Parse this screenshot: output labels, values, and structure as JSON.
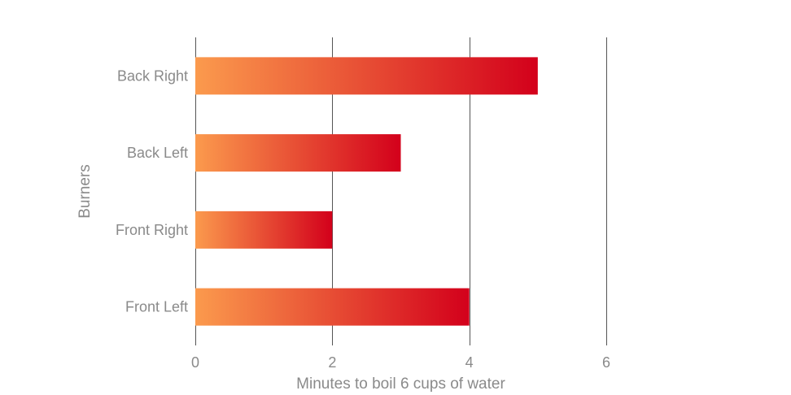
{
  "chart_data": {
    "type": "bar",
    "orientation": "horizontal",
    "categories": [
      "Back Right",
      "Back Left",
      "Front Right",
      "Front Left"
    ],
    "values": [
      5,
      3,
      2,
      4
    ],
    "xlabel": "Minutes to boil 6 cups of water",
    "ylabel": "Burners",
    "xlim": [
      0,
      6
    ],
    "xticks": [
      "0",
      "2",
      "4",
      "6"
    ],
    "grid": "vertical",
    "legend": "none"
  },
  "colors": {
    "bar_gradient_start": "#fb9a4d",
    "bar_gradient_end": "#d3001b",
    "gridline": "#555555",
    "text": "#8a8a8a"
  }
}
